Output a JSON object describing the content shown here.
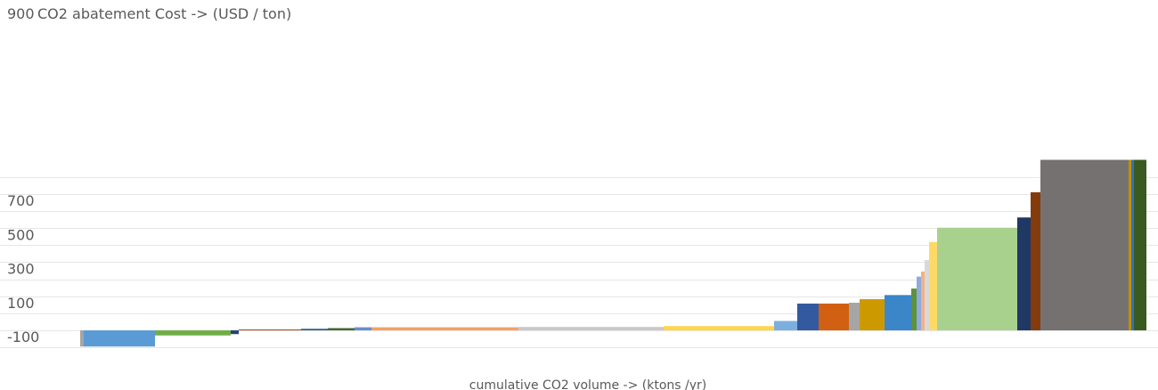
{
  "chart_data": {
    "type": "bar",
    "subtype": "marginal-abatement-cost-curve",
    "title": "",
    "ylabel": "CO2 abatement Cost -> (USD / ton)",
    "xlabel": "cumulative CO2 volume -> (ktons /yr)",
    "ylim": [
      -100,
      1000
    ],
    "yticks_labeled": [
      -100,
      100,
      300,
      500,
      700,
      900
    ],
    "grid": true,
    "legend": "none",
    "bars": [
      {
        "width": 4,
        "value": -95,
        "color": "#a5a5a5"
      },
      {
        "width": 80,
        "value": -95,
        "color": "#5b9bd5"
      },
      {
        "width": 85,
        "value": -30,
        "color": "#70ad47"
      },
      {
        "width": 9,
        "value": -22,
        "color": "#264478"
      },
      {
        "width": 70,
        "value": 5,
        "color": "#9e480e"
      },
      {
        "width": 30,
        "value": 9,
        "color": "#255e91"
      },
      {
        "width": 30,
        "value": 13,
        "color": "#43682b"
      },
      {
        "width": 19,
        "value": 18,
        "color": "#698ed0"
      },
      {
        "width": 165,
        "value": 18,
        "color": "#f4a063"
      },
      {
        "width": 163,
        "value": 20,
        "color": "#c9c9c9"
      },
      {
        "width": 124,
        "value": 25,
        "color": "#ffd54c"
      },
      {
        "width": 26,
        "value": 55,
        "color": "#7cafdd"
      },
      {
        "width": 24,
        "value": 157,
        "color": "#335aa1"
      },
      {
        "width": 34,
        "value": 157,
        "color": "#d26012"
      },
      {
        "width": 12,
        "value": 162,
        "color": "#a5a5a5"
      },
      {
        "width": 28,
        "value": 183,
        "color": "#cc9a00"
      },
      {
        "width": 30,
        "value": 207,
        "color": "#3a86c8"
      },
      {
        "width": 6,
        "value": 245,
        "color": "#5e913d"
      },
      {
        "width": 5,
        "value": 315,
        "color": "#8faadc"
      },
      {
        "width": 4,
        "value": 345,
        "color": "#f4b183"
      },
      {
        "width": 5,
        "value": 412,
        "color": "#d9d9d9"
      },
      {
        "width": 9,
        "value": 518,
        "color": "#ffd966"
      },
      {
        "width": 90,
        "value": 602,
        "color": "#a9d18e"
      },
      {
        "width": 15,
        "value": 662,
        "color": "#203864"
      },
      {
        "width": 11,
        "value": 810,
        "color": "#843c0c"
      },
      {
        "width": 99,
        "value": 1000,
        "color": "#767171"
      },
      {
        "width": 3,
        "value": 1000,
        "color": "#bf9000"
      },
      {
        "width": 3,
        "value": 1000,
        "color": "#2e75b6"
      },
      {
        "width": 14,
        "value": 1000,
        "color": "#3a5a22"
      }
    ]
  }
}
